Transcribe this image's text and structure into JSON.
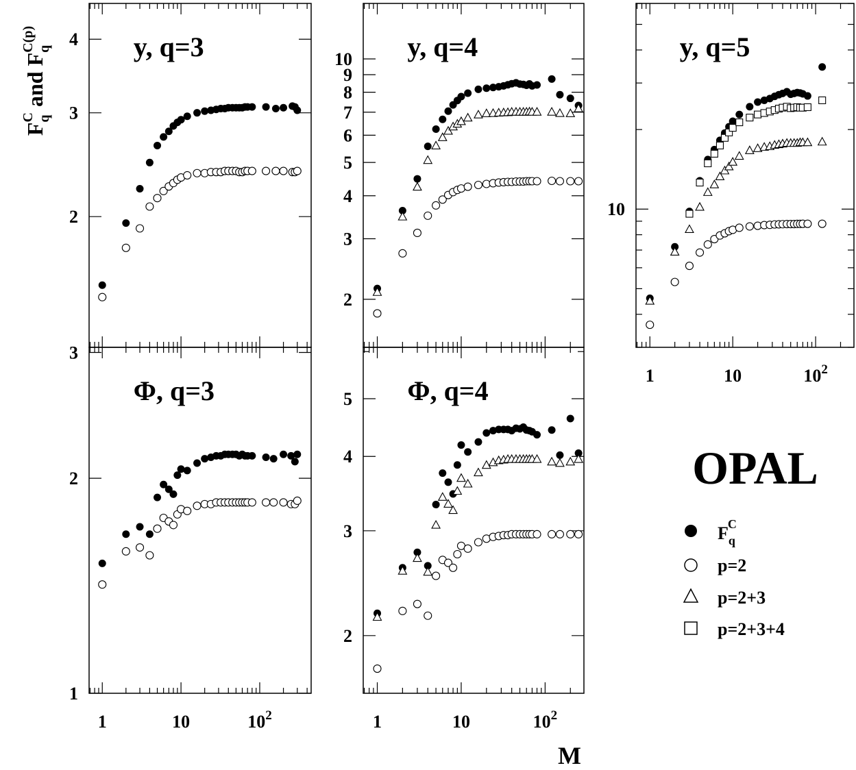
{
  "figure": {
    "ylabel_main": "F",
    "ylabel_sub1": "q",
    "ylabel_sup1": "C",
    "ylabel_and": " and ",
    "ylabel_main2": "F",
    "ylabel_sub2": "q",
    "ylabel_sup2": "C(p)",
    "xlabel": "M",
    "experiment_label": "OPAL",
    "legend": [
      {
        "symbol": "filled-circle",
        "label": "F",
        "sub": "q",
        "sup": "C"
      },
      {
        "symbol": "open-circle",
        "label": "p=2"
      },
      {
        "symbol": "open-triangle",
        "label": "p=2+3"
      },
      {
        "symbol": "open-square",
        "label": "p=2+3+4"
      }
    ]
  },
  "chart_data": [
    {
      "type": "scatter",
      "title": "y, q=3",
      "title_var": "y",
      "title_q": ", q=3",
      "xscale": "log",
      "yscale": "log",
      "xlim": [
        0.68,
        450
      ],
      "ylim": [
        1.2,
        4.6
      ],
      "xticks": [
        {
          "v": 1,
          "t": "1"
        },
        {
          "v": 10,
          "t": "10"
        },
        {
          "v": 100,
          "t": "10",
          "sup": "2"
        }
      ],
      "yticks": [
        {
          "v": 2,
          "t": "2"
        },
        {
          "v": 3,
          "t": "3"
        },
        {
          "v": 4,
          "t": "4"
        }
      ],
      "series": [
        {
          "symbol": "filled-circle",
          "x": [
            1,
            2,
            3,
            4,
            5,
            6,
            7,
            8,
            9,
            10,
            12,
            16,
            20,
            24,
            28,
            32,
            36,
            40,
            45,
            50,
            55,
            60,
            65,
            70,
            80,
            120,
            160,
            200,
            260,
            280,
            300
          ],
          "y": [
            1.53,
            1.95,
            2.23,
            2.47,
            2.64,
            2.73,
            2.79,
            2.85,
            2.89,
            2.92,
            2.96,
            3.0,
            3.02,
            3.03,
            3.04,
            3.05,
            3.05,
            3.06,
            3.06,
            3.06,
            3.06,
            3.06,
            3.07,
            3.07,
            3.07,
            3.07,
            3.05,
            3.06,
            3.08,
            3.07,
            3.03
          ]
        },
        {
          "symbol": "open-circle",
          "x": [
            1,
            2,
            3,
            4,
            5,
            6,
            7,
            8,
            9,
            10,
            12,
            16,
            20,
            24,
            28,
            32,
            36,
            40,
            45,
            50,
            55,
            60,
            65,
            70,
            80,
            120,
            160,
            200,
            260,
            280,
            300
          ],
          "y": [
            1.46,
            1.77,
            1.91,
            2.08,
            2.15,
            2.21,
            2.25,
            2.28,
            2.31,
            2.33,
            2.35,
            2.37,
            2.37,
            2.38,
            2.38,
            2.38,
            2.39,
            2.39,
            2.39,
            2.39,
            2.38,
            2.38,
            2.39,
            2.39,
            2.39,
            2.39,
            2.39,
            2.39,
            2.38,
            2.38,
            2.39
          ]
        }
      ]
    },
    {
      "type": "scatter",
      "title": "y, q=4",
      "title_var": "y",
      "title_q": ", q=4",
      "xscale": "log",
      "yscale": "log",
      "xlim": [
        0.68,
        290
      ],
      "ylim": [
        1.45,
        14.5
      ],
      "xticks": [
        {
          "v": 1,
          "t": "1"
        },
        {
          "v": 10,
          "t": "10"
        },
        {
          "v": 100,
          "t": "10",
          "sup": "2"
        }
      ],
      "yticks": [
        {
          "v": 2,
          "t": "2"
        },
        {
          "v": 3,
          "t": "3"
        },
        {
          "v": 4,
          "t": "4"
        },
        {
          "v": 5,
          "t": "5"
        },
        {
          "v": 6,
          "t": "6"
        },
        {
          "v": 7,
          "t": "7"
        },
        {
          "v": 8,
          "t": "8"
        },
        {
          "v": 9,
          "t": "9"
        },
        {
          "v": 10,
          "t": "10"
        }
      ],
      "series": [
        {
          "symbol": "filled-circle",
          "x": [
            1,
            2,
            3,
            4,
            5,
            6,
            7,
            8,
            9,
            10,
            12,
            16,
            20,
            24,
            28,
            32,
            36,
            40,
            45,
            50,
            55,
            60,
            65,
            70,
            80,
            120,
            150,
            200,
            250
          ],
          "y": [
            2.15,
            3.62,
            4.48,
            5.57,
            6.25,
            6.67,
            7.05,
            7.35,
            7.57,
            7.77,
            7.95,
            8.16,
            8.22,
            8.26,
            8.3,
            8.35,
            8.41,
            8.47,
            8.52,
            8.45,
            8.43,
            8.38,
            8.46,
            8.35,
            8.4,
            8.74,
            7.87,
            7.68,
            7.32
          ]
        },
        {
          "symbol": "open-triangle",
          "x": [
            1,
            2,
            3,
            4,
            5,
            6,
            7,
            8,
            9,
            10,
            12,
            16,
            20,
            24,
            28,
            32,
            36,
            40,
            45,
            50,
            55,
            60,
            65,
            70,
            80,
            120,
            150,
            200,
            250
          ],
          "y": [
            2.1,
            3.48,
            4.25,
            5.08,
            5.6,
            5.92,
            6.18,
            6.36,
            6.48,
            6.59,
            6.75,
            6.89,
            6.95,
            6.96,
            6.98,
            6.99,
            7.0,
            7.02,
            7.02,
            7.02,
            7.02,
            7.02,
            7.03,
            7.02,
            7.02,
            7.02,
            6.96,
            6.95,
            7.18
          ]
        },
        {
          "symbol": "open-circle",
          "x": [
            1,
            2,
            3,
            4,
            5,
            6,
            7,
            8,
            9,
            10,
            12,
            16,
            20,
            24,
            28,
            32,
            36,
            40,
            45,
            50,
            55,
            60,
            65,
            70,
            80,
            120,
            150,
            200,
            250
          ],
          "y": [
            1.82,
            2.72,
            3.12,
            3.5,
            3.75,
            3.9,
            4.02,
            4.1,
            4.16,
            4.2,
            4.25,
            4.3,
            4.33,
            4.35,
            4.37,
            4.38,
            4.39,
            4.39,
            4.4,
            4.4,
            4.4,
            4.41,
            4.41,
            4.41,
            4.41,
            4.42,
            4.41,
            4.41,
            4.41
          ]
        }
      ]
    },
    {
      "type": "scatter",
      "title": "y, q=5",
      "title_var": "y",
      "title_q": ", q=5",
      "xscale": "log",
      "yscale": "log",
      "xlim": [
        0.68,
        290
      ],
      "ylim": [
        3.0,
        60
      ],
      "xticks": [
        {
          "v": 1,
          "t": "1"
        },
        {
          "v": 10,
          "t": "10"
        },
        {
          "v": 100,
          "t": "10",
          "sup": "2"
        }
      ],
      "yticks": [
        {
          "v": 10,
          "t": "10"
        }
      ],
      "series": [
        {
          "symbol": "filled-circle",
          "x": [
            1,
            2,
            3,
            4,
            5,
            6,
            7,
            8,
            9,
            10,
            12,
            16,
            20,
            24,
            28,
            32,
            36,
            40,
            45,
            50,
            55,
            60,
            65,
            70,
            80,
            120
          ],
          "y": [
            4.6,
            7.2,
            9.8,
            12.8,
            15.4,
            16.8,
            18.2,
            19.4,
            20.5,
            21.5,
            22.8,
            24.4,
            25.4,
            25.8,
            26.2,
            26.7,
            27.1,
            27.4,
            27.8,
            27.2,
            27.4,
            27.6,
            27.5,
            27.3,
            26.8,
            34.5
          ]
        },
        {
          "symbol": "open-square",
          "x": [
            3,
            4,
            5,
            6,
            7,
            8,
            9,
            10,
            12,
            16,
            20,
            24,
            28,
            32,
            36,
            40,
            45,
            50,
            55,
            60,
            65,
            70,
            80,
            120
          ],
          "y": [
            9.6,
            12.6,
            14.9,
            16.2,
            17.4,
            18.6,
            19.5,
            20.3,
            21.3,
            22.2,
            22.8,
            23.1,
            23.4,
            23.7,
            24.0,
            24.2,
            24.4,
            24.1,
            24.2,
            24.3,
            24.2,
            24.2,
            24.3,
            25.8
          ]
        },
        {
          "symbol": "open-triangle",
          "x": [
            1,
            2,
            3,
            4,
            5,
            6,
            7,
            8,
            9,
            10,
            12,
            16,
            20,
            24,
            28,
            32,
            36,
            40,
            45,
            50,
            55,
            60,
            65,
            70,
            80,
            120
          ],
          "y": [
            4.5,
            6.9,
            8.4,
            10.2,
            11.6,
            12.4,
            13.3,
            14.0,
            14.5,
            15.1,
            15.9,
            16.7,
            17.0,
            17.2,
            17.3,
            17.5,
            17.6,
            17.7,
            17.8,
            17.8,
            17.8,
            17.8,
            17.9,
            17.9,
            17.9,
            18.0
          ]
        },
        {
          "symbol": "open-circle",
          "x": [
            1,
            2,
            3,
            4,
            5,
            6,
            7,
            8,
            9,
            10,
            12,
            16,
            20,
            24,
            28,
            32,
            36,
            40,
            45,
            50,
            55,
            60,
            65,
            70,
            80,
            120
          ],
          "y": [
            3.65,
            5.3,
            6.1,
            6.85,
            7.35,
            7.7,
            7.95,
            8.1,
            8.25,
            8.35,
            8.5,
            8.6,
            8.65,
            8.7,
            8.72,
            8.75,
            8.76,
            8.77,
            8.78,
            8.78,
            8.78,
            8.79,
            8.79,
            8.8,
            8.8,
            8.8
          ]
        }
      ]
    },
    {
      "type": "scatter",
      "title": "Φ, q=3",
      "title_var": "Φ",
      "title_q": ", q=3",
      "xscale": "log",
      "yscale": "log",
      "xlim": [
        0.68,
        450
      ],
      "ylim": [
        1.0,
        3.05
      ],
      "xticks": [
        {
          "v": 1,
          "t": "1"
        },
        {
          "v": 10,
          "t": "10"
        },
        {
          "v": 100,
          "t": "10",
          "sup": "2"
        }
      ],
      "yticks": [
        {
          "v": 1,
          "t": "1"
        },
        {
          "v": 2,
          "t": "2"
        },
        {
          "v": 3,
          "t": "3"
        }
      ],
      "series": [
        {
          "symbol": "filled-circle",
          "x": [
            1,
            2,
            3,
            4,
            5,
            6,
            7,
            8,
            9,
            10,
            12,
            16,
            20,
            24,
            28,
            32,
            36,
            40,
            45,
            50,
            55,
            60,
            65,
            70,
            80,
            120,
            150,
            200,
            250,
            280,
            300
          ],
          "y": [
            1.52,
            1.67,
            1.71,
            1.67,
            1.88,
            1.96,
            1.93,
            1.9,
            2.02,
            2.06,
            2.05,
            2.1,
            2.13,
            2.14,
            2.15,
            2.15,
            2.16,
            2.16,
            2.16,
            2.16,
            2.15,
            2.16,
            2.15,
            2.15,
            2.15,
            2.14,
            2.13,
            2.16,
            2.15,
            2.11,
            2.16
          ]
        },
        {
          "symbol": "open-circle",
          "x": [
            1,
            2,
            3,
            4,
            5,
            6,
            7,
            8,
            9,
            10,
            12,
            16,
            20,
            24,
            28,
            32,
            36,
            40,
            45,
            50,
            55,
            60,
            65,
            70,
            80,
            120,
            150,
            200,
            250,
            280,
            300
          ],
          "y": [
            1.42,
            1.58,
            1.6,
            1.56,
            1.7,
            1.76,
            1.74,
            1.72,
            1.78,
            1.81,
            1.8,
            1.83,
            1.84,
            1.84,
            1.85,
            1.85,
            1.85,
            1.85,
            1.85,
            1.85,
            1.85,
            1.85,
            1.85,
            1.85,
            1.85,
            1.85,
            1.85,
            1.85,
            1.84,
            1.84,
            1.86
          ]
        }
      ]
    },
    {
      "type": "scatter",
      "title": "Φ, q=4",
      "title_var": "Φ",
      "title_q": ", q=4",
      "xscale": "log",
      "yscale": "log",
      "xlim": [
        0.68,
        290
      ],
      "ylim": [
        1.6,
        6.1
      ],
      "xticks": [
        {
          "v": 1,
          "t": "1"
        },
        {
          "v": 10,
          "t": "10"
        },
        {
          "v": 100,
          "t": "10",
          "sup": "2"
        }
      ],
      "yticks": [
        {
          "v": 2,
          "t": "2"
        },
        {
          "v": 3,
          "t": "3"
        },
        {
          "v": 4,
          "t": "4"
        },
        {
          "v": 5,
          "t": "5"
        }
      ],
      "series": [
        {
          "symbol": "filled-circle",
          "x": [
            1,
            2,
            3,
            4,
            5,
            6,
            7,
            8,
            9,
            10,
            12,
            16,
            20,
            24,
            28,
            32,
            36,
            40,
            45,
            50,
            55,
            60,
            65,
            70,
            80,
            120,
            150,
            200,
            250
          ],
          "y": [
            2.18,
            2.6,
            2.76,
            2.62,
            3.32,
            3.75,
            3.62,
            3.46,
            3.87,
            4.18,
            4.07,
            4.23,
            4.38,
            4.42,
            4.44,
            4.44,
            4.44,
            4.42,
            4.46,
            4.45,
            4.48,
            4.43,
            4.42,
            4.4,
            4.35,
            4.43,
            4.02,
            4.63,
            4.05
          ]
        },
        {
          "symbol": "open-triangle",
          "x": [
            1,
            2,
            3,
            4,
            5,
            6,
            7,
            8,
            9,
            10,
            12,
            16,
            20,
            24,
            28,
            32,
            36,
            40,
            45,
            50,
            55,
            60,
            65,
            70,
            80,
            120,
            150,
            200,
            250
          ],
          "y": [
            2.15,
            2.57,
            2.7,
            2.56,
            3.07,
            3.42,
            3.33,
            3.25,
            3.5,
            3.68,
            3.6,
            3.76,
            3.87,
            3.91,
            3.94,
            3.95,
            3.96,
            3.96,
            3.96,
            3.96,
            3.96,
            3.96,
            3.96,
            3.96,
            3.96,
            3.92,
            3.9,
            3.92,
            3.96
          ]
        },
        {
          "symbol": "open-circle",
          "x": [
            1,
            2,
            3,
            4,
            5,
            6,
            7,
            8,
            9,
            10,
            12,
            16,
            20,
            24,
            28,
            32,
            36,
            40,
            45,
            50,
            55,
            60,
            65,
            70,
            80,
            120,
            150,
            200,
            250
          ],
          "y": [
            1.76,
            2.2,
            2.26,
            2.16,
            2.52,
            2.68,
            2.65,
            2.6,
            2.74,
            2.83,
            2.8,
            2.87,
            2.91,
            2.93,
            2.94,
            2.95,
            2.95,
            2.96,
            2.96,
            2.96,
            2.96,
            2.96,
            2.96,
            2.96,
            2.96,
            2.96,
            2.96,
            2.96,
            2.96
          ]
        }
      ]
    }
  ]
}
